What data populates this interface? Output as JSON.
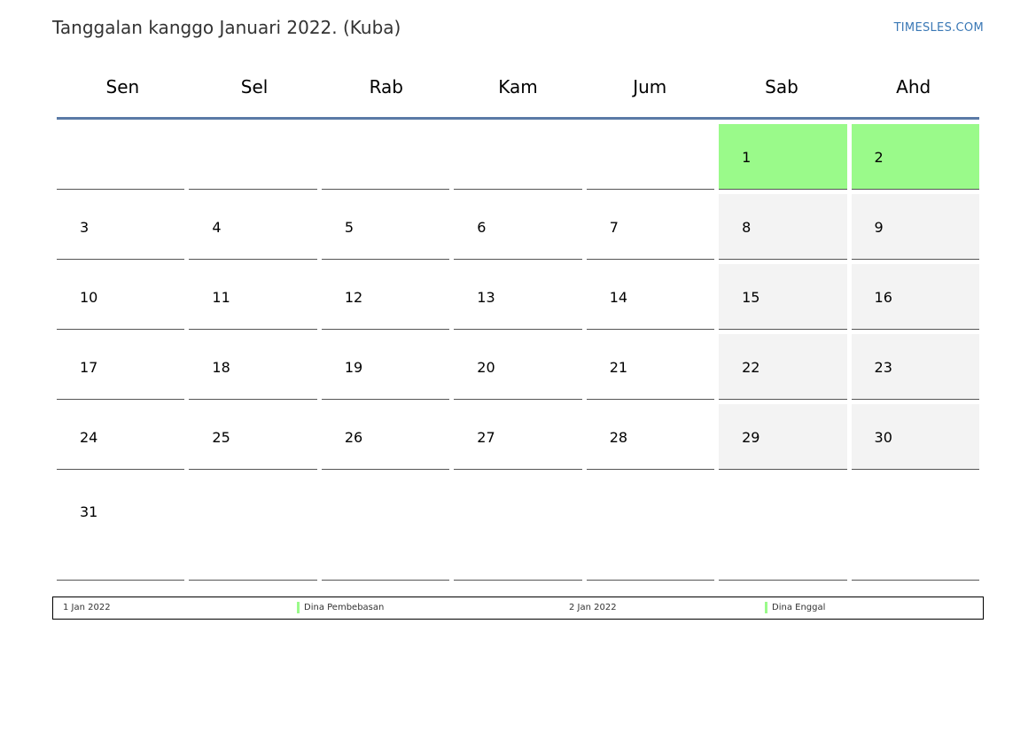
{
  "header": {
    "title": "Tanggalan kanggo Januari 2022. (Kuba)",
    "brand": "TIMESLES.COM"
  },
  "colors": {
    "holiday": "#9afa8a",
    "weekend": "#f3f3f3",
    "header_rule": "#5a7aa6",
    "brand": "#3a78b5"
  },
  "calendar": {
    "weekdays": [
      "Sen",
      "Sel",
      "Rab",
      "Kam",
      "Jum",
      "Sab",
      "Ahd"
    ],
    "weeks": [
      [
        "",
        "",
        "",
        "",
        "",
        "1",
        "2"
      ],
      [
        "3",
        "4",
        "5",
        "6",
        "7",
        "8",
        "9"
      ],
      [
        "10",
        "11",
        "12",
        "13",
        "14",
        "15",
        "16"
      ],
      [
        "17",
        "18",
        "19",
        "20",
        "21",
        "22",
        "23"
      ],
      [
        "24",
        "25",
        "26",
        "27",
        "28",
        "29",
        "30"
      ],
      [
        "31",
        "",
        "",
        "",
        "",
        "",
        ""
      ]
    ],
    "holidays": [
      "1",
      "2"
    ]
  },
  "legend": [
    {
      "date": "1 Jan 2022",
      "name": "Dina Pembebasan"
    },
    {
      "date": "2 Jan 2022",
      "name": "Dina Enggal"
    }
  ]
}
